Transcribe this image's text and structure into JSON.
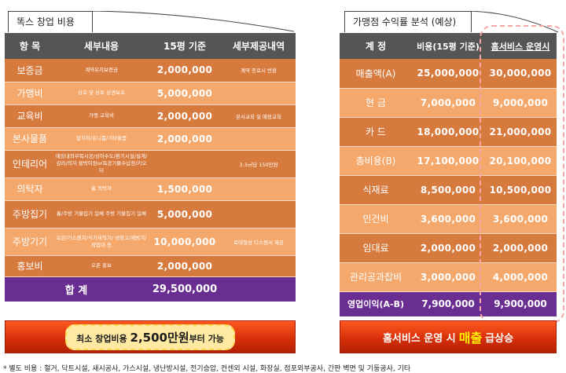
{
  "left": {
    "title": "똑스 창업 비용",
    "headers": [
      "항 목",
      "세부내용",
      "15평 기준",
      "세부제공내역"
    ],
    "rows": [
      {
        "item": "보증금",
        "detail": "계약유지보증금",
        "amount": "2,000,000",
        "provided": "계약 종료시 반환"
      },
      {
        "item": "가맹비",
        "detail": "상호 및 상표 상권보호",
        "amount": "5,000,000",
        "provided": ""
      },
      {
        "item": "교육비",
        "detail": "가맹 교육비",
        "amount": "2,000,000",
        "provided": "본사교육 및 매장교육"
      },
      {
        "item": "본사물품",
        "detail": "앞치마/유니폼/기타물품",
        "amount": "2,000,000",
        "provided": ""
      },
      {
        "item": "인테리어",
        "detail": "매장내외부목시공/상하수도/환기시설/설계/감리/의자 블박이장or목공기물수납장/키오터",
        "amount": "",
        "provided": "3.3㎡당 150만원"
      },
      {
        "item": "의탁자",
        "detail": "홀 의탁자",
        "amount": "1,500,000",
        "provided": ""
      },
      {
        "item": "주방집기",
        "detail": "홀/주방 기물집기 일체 주방 기물집기 일체",
        "amount": "5,000,000",
        "provided": ""
      },
      {
        "item": "주방기기",
        "detail": "오븐/가스렌지/식기세척기/ 냉장고/제빙기/작업대 등",
        "amount": "10,000,000",
        "provided": "로테절성 디스펜서 제공"
      },
      {
        "item": "홍보비",
        "detail": "오픈 홍보",
        "amount": "2,000,000",
        "provided": ""
      }
    ],
    "total_label": "합 계",
    "total_amount": "29,500,000",
    "banner_pre": "최소 창업비용 ",
    "banner_big": "2,500만원",
    "banner_post": "부터 가능"
  },
  "right": {
    "title": "가맹점 수익률 분석 (예상)",
    "headers": [
      "계 정",
      "비용(15평 기준)",
      "홈서비스 운영시"
    ],
    "rows": [
      {
        "item": "매출액(A)",
        "cost": "25,000,000",
        "home": "30,000,000"
      },
      {
        "item": "현 금",
        "cost": "7,000,000",
        "home": "9,000,000"
      },
      {
        "item": "카 드",
        "cost": "18,000,000",
        "home": "21,000,000"
      },
      {
        "item": "총비용(B)",
        "cost": "17,100,000",
        "home": "20,100,000"
      },
      {
        "item": "식재료",
        "cost": "8,500,000",
        "home": "10,500,000"
      },
      {
        "item": "인건비",
        "cost": "3,600,000",
        "home": "3,600,000"
      },
      {
        "item": "임대료",
        "cost": "2,000,000",
        "home": "2,000,000"
      },
      {
        "item": "관리공과잡비",
        "cost": "3,000,000",
        "home": "4,000,000"
      }
    ],
    "total_label": "영업이익(A-B)",
    "total_cost": "7,900,000",
    "total_home": "9,900,000",
    "banner_pre": "홈서비스 운영 시 ",
    "banner_big": "매출",
    "banner_post": " 급상승"
  },
  "footnote": "* 별도 비용 : 철거, 닥트시설, 새시공사, 가스시설, 냉난방시설, 전기승압, 컨센외 시설, 화장실, 점포외부공사, 간판 벽면 및 기둥공사, 기타"
}
